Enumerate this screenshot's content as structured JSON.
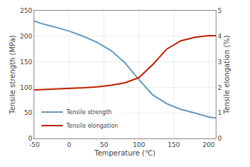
{
  "chart_data": {
    "type": "line",
    "x": [
      -50,
      -40,
      -20,
      0,
      20,
      40,
      60,
      80,
      100,
      120,
      140,
      160,
      180,
      200,
      210
    ],
    "series": [
      {
        "name": "Tensile strength",
        "color": "#6699bb",
        "values": [
          230,
          225,
          218,
          210,
          200,
          188,
          172,
          148,
          115,
          85,
          68,
          57,
          50,
          42,
          40
        ]
      },
      {
        "name": "Tensile elongation",
        "color": "#bb2200",
        "axis": "y2",
        "values": [
          1.9,
          1.91,
          1.93,
          1.96,
          1.98,
          2.02,
          2.08,
          2.18,
          2.38,
          2.9,
          3.5,
          3.82,
          3.96,
          4.02,
          4.02
        ]
      }
    ],
    "xlabel": "Temperature (℃)",
    "ylabel": "Tensile strength (MPa)",
    "y2label": "Tensile elongation (%)",
    "xlim": [
      -50,
      210
    ],
    "ylim": [
      0,
      250
    ],
    "y2lim": [
      0,
      5
    ],
    "xticks": [
      -50,
      0,
      50,
      100,
      150,
      200
    ],
    "yticks": [
      0,
      50,
      100,
      150,
      200,
      250
    ],
    "y2ticks": [
      0,
      1,
      2,
      3,
      4,
      5
    ],
    "grid": true,
    "legend": "lower left"
  }
}
